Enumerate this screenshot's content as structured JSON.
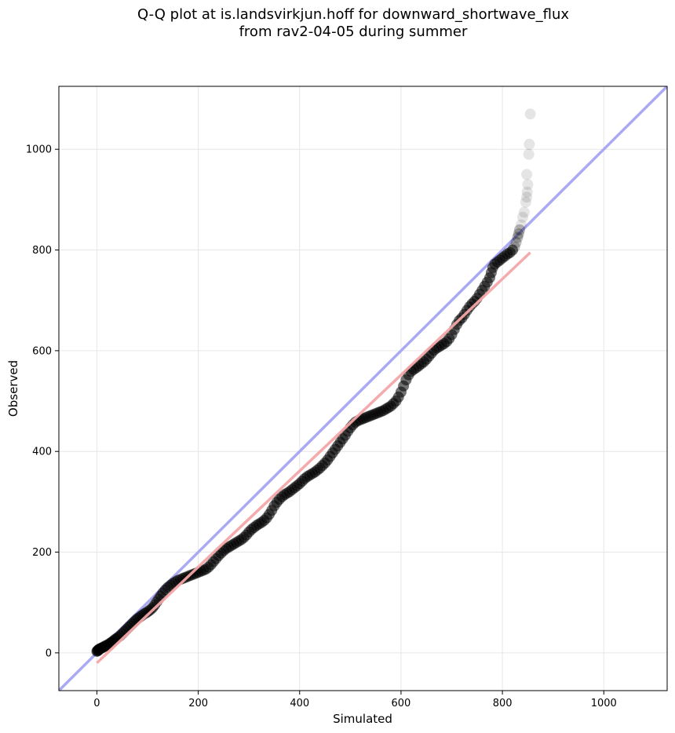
{
  "chart_data": {
    "type": "scatter",
    "title": [
      "Q-Q plot at is.landsvirkjun.hoff for downward_shortwave_flux",
      "from rav2-04-05 during summer"
    ],
    "xlabel": "Simulated",
    "ylabel": "Observed",
    "xlim": [
      -75,
      1125
    ],
    "ylim": [
      -75,
      1125
    ],
    "xticks": [
      0,
      200,
      400,
      600,
      800,
      1000
    ],
    "yticks": [
      0,
      200,
      400,
      600,
      800,
      1000
    ],
    "grid": true,
    "reference_line": {
      "from": [
        -75,
        -75
      ],
      "to": [
        1125,
        1125
      ],
      "color": "#aaaaf4"
    },
    "fit_line": {
      "from": [
        0,
        -20
      ],
      "to": [
        855,
        795
      ],
      "color": "#f4a6a6"
    },
    "point_color": "#000000",
    "points": [
      [
        0,
        3
      ],
      [
        1,
        4
      ],
      [
        2,
        5
      ],
      [
        3,
        5
      ],
      [
        4,
        7
      ],
      [
        6,
        8
      ],
      [
        8,
        9
      ],
      [
        10,
        10
      ],
      [
        12,
        11
      ],
      [
        14,
        12
      ],
      [
        17,
        14
      ],
      [
        20,
        15
      ],
      [
        23,
        17
      ],
      [
        26,
        19
      ],
      [
        29,
        21
      ],
      [
        32,
        23
      ],
      [
        35,
        26
      ],
      [
        38,
        28
      ],
      [
        42,
        31
      ],
      [
        46,
        34
      ],
      [
        50,
        38
      ],
      [
        54,
        42
      ],
      [
        58,
        46
      ],
      [
        62,
        50
      ],
      [
        66,
        54
      ],
      [
        70,
        58
      ],
      [
        74,
        62
      ],
      [
        78,
        66
      ],
      [
        82,
        69
      ],
      [
        86,
        72
      ],
      [
        90,
        75
      ],
      [
        94,
        78
      ],
      [
        98,
        80
      ],
      [
        102,
        83
      ],
      [
        106,
        86
      ],
      [
        110,
        90
      ],
      [
        114,
        95
      ],
      [
        118,
        101
      ],
      [
        122,
        107
      ],
      [
        126,
        113
      ],
      [
        130,
        119
      ],
      [
        135,
        125
      ],
      [
        140,
        130
      ],
      [
        145,
        134
      ],
      [
        150,
        138
      ],
      [
        155,
        141
      ],
      [
        160,
        144
      ],
      [
        165,
        146
      ],
      [
        170,
        148
      ],
      [
        175,
        150
      ],
      [
        180,
        152
      ],
      [
        185,
        154
      ],
      [
        190,
        156
      ],
      [
        195,
        158
      ],
      [
        200,
        160
      ],
      [
        205,
        162
      ],
      [
        210,
        164
      ],
      [
        215,
        166
      ],
      [
        220,
        170
      ],
      [
        225,
        175
      ],
      [
        230,
        181
      ],
      [
        235,
        187
      ],
      [
        240,
        193
      ],
      [
        245,
        198
      ],
      [
        250,
        203
      ],
      [
        255,
        207
      ],
      [
        260,
        210
      ],
      [
        265,
        213
      ],
      [
        270,
        216
      ],
      [
        275,
        219
      ],
      [
        280,
        222
      ],
      [
        285,
        225
      ],
      [
        290,
        229
      ],
      [
        295,
        234
      ],
      [
        300,
        240
      ],
      [
        305,
        245
      ],
      [
        310,
        249
      ],
      [
        315,
        253
      ],
      [
        320,
        256
      ],
      [
        325,
        259
      ],
      [
        330,
        263
      ],
      [
        335,
        268
      ],
      [
        340,
        275
      ],
      [
        345,
        283
      ],
      [
        350,
        292
      ],
      [
        355,
        299
      ],
      [
        360,
        305
      ],
      [
        365,
        310
      ],
      [
        370,
        314
      ],
      [
        375,
        317
      ],
      [
        380,
        320
      ],
      [
        385,
        324
      ],
      [
        390,
        328
      ],
      [
        395,
        332
      ],
      [
        400,
        336
      ],
      [
        405,
        341
      ],
      [
        410,
        346
      ],
      [
        415,
        350
      ],
      [
        420,
        353
      ],
      [
        425,
        356
      ],
      [
        430,
        359
      ],
      [
        435,
        363
      ],
      [
        440,
        367
      ],
      [
        445,
        372
      ],
      [
        450,
        377
      ],
      [
        455,
        383
      ],
      [
        460,
        390
      ],
      [
        465,
        397
      ],
      [
        470,
        404
      ],
      [
        475,
        411
      ],
      [
        480,
        418
      ],
      [
        485,
        425
      ],
      [
        490,
        432
      ],
      [
        495,
        440
      ],
      [
        500,
        447
      ],
      [
        505,
        453
      ],
      [
        510,
        458
      ],
      [
        515,
        461
      ],
      [
        520,
        463
      ],
      [
        525,
        465
      ],
      [
        530,
        467
      ],
      [
        535,
        469
      ],
      [
        540,
        471
      ],
      [
        545,
        473
      ],
      [
        550,
        475
      ],
      [
        555,
        477
      ],
      [
        560,
        479
      ],
      [
        565,
        481
      ],
      [
        570,
        484
      ],
      [
        575,
        487
      ],
      [
        580,
        490
      ],
      [
        585,
        495
      ],
      [
        590,
        500
      ],
      [
        595,
        508
      ],
      [
        600,
        518
      ],
      [
        605,
        530
      ],
      [
        610,
        542
      ],
      [
        615,
        552
      ],
      [
        620,
        559
      ],
      [
        625,
        563
      ],
      [
        630,
        566
      ],
      [
        635,
        570
      ],
      [
        640,
        574
      ],
      [
        645,
        578
      ],
      [
        650,
        583
      ],
      [
        655,
        589
      ],
      [
        660,
        595
      ],
      [
        665,
        601
      ],
      [
        670,
        605
      ],
      [
        675,
        608
      ],
      [
        680,
        611
      ],
      [
        685,
        614
      ],
      [
        690,
        618
      ],
      [
        695,
        624
      ],
      [
        700,
        632
      ],
      [
        705,
        642
      ],
      [
        710,
        652
      ],
      [
        715,
        660
      ],
      [
        720,
        665
      ],
      [
        725,
        672
      ],
      [
        730,
        680
      ],
      [
        735,
        687
      ],
      [
        740,
        693
      ],
      [
        745,
        698
      ],
      [
        750,
        704
      ],
      [
        755,
        712
      ],
      [
        760,
        720
      ],
      [
        765,
        728
      ],
      [
        770,
        736
      ],
      [
        775,
        745
      ],
      [
        778,
        755
      ],
      [
        781,
        765
      ],
      [
        785,
        772
      ],
      [
        790,
        776
      ],
      [
        795,
        780
      ],
      [
        800,
        784
      ],
      [
        805,
        788
      ],
      [
        810,
        792
      ],
      [
        815,
        795
      ],
      [
        820,
        800
      ],
      [
        824,
        806
      ],
      [
        827,
        815
      ],
      [
        830,
        825
      ],
      [
        832,
        832
      ],
      [
        834,
        840
      ],
      [
        837,
        850
      ],
      [
        840,
        865
      ],
      [
        843,
        875
      ],
      [
        846,
        895
      ],
      [
        848,
        905
      ],
      [
        849,
        915
      ],
      [
        850,
        930
      ],
      [
        848,
        950
      ],
      [
        852,
        990
      ],
      [
        853,
        1010
      ],
      [
        855,
        1070
      ]
    ]
  }
}
